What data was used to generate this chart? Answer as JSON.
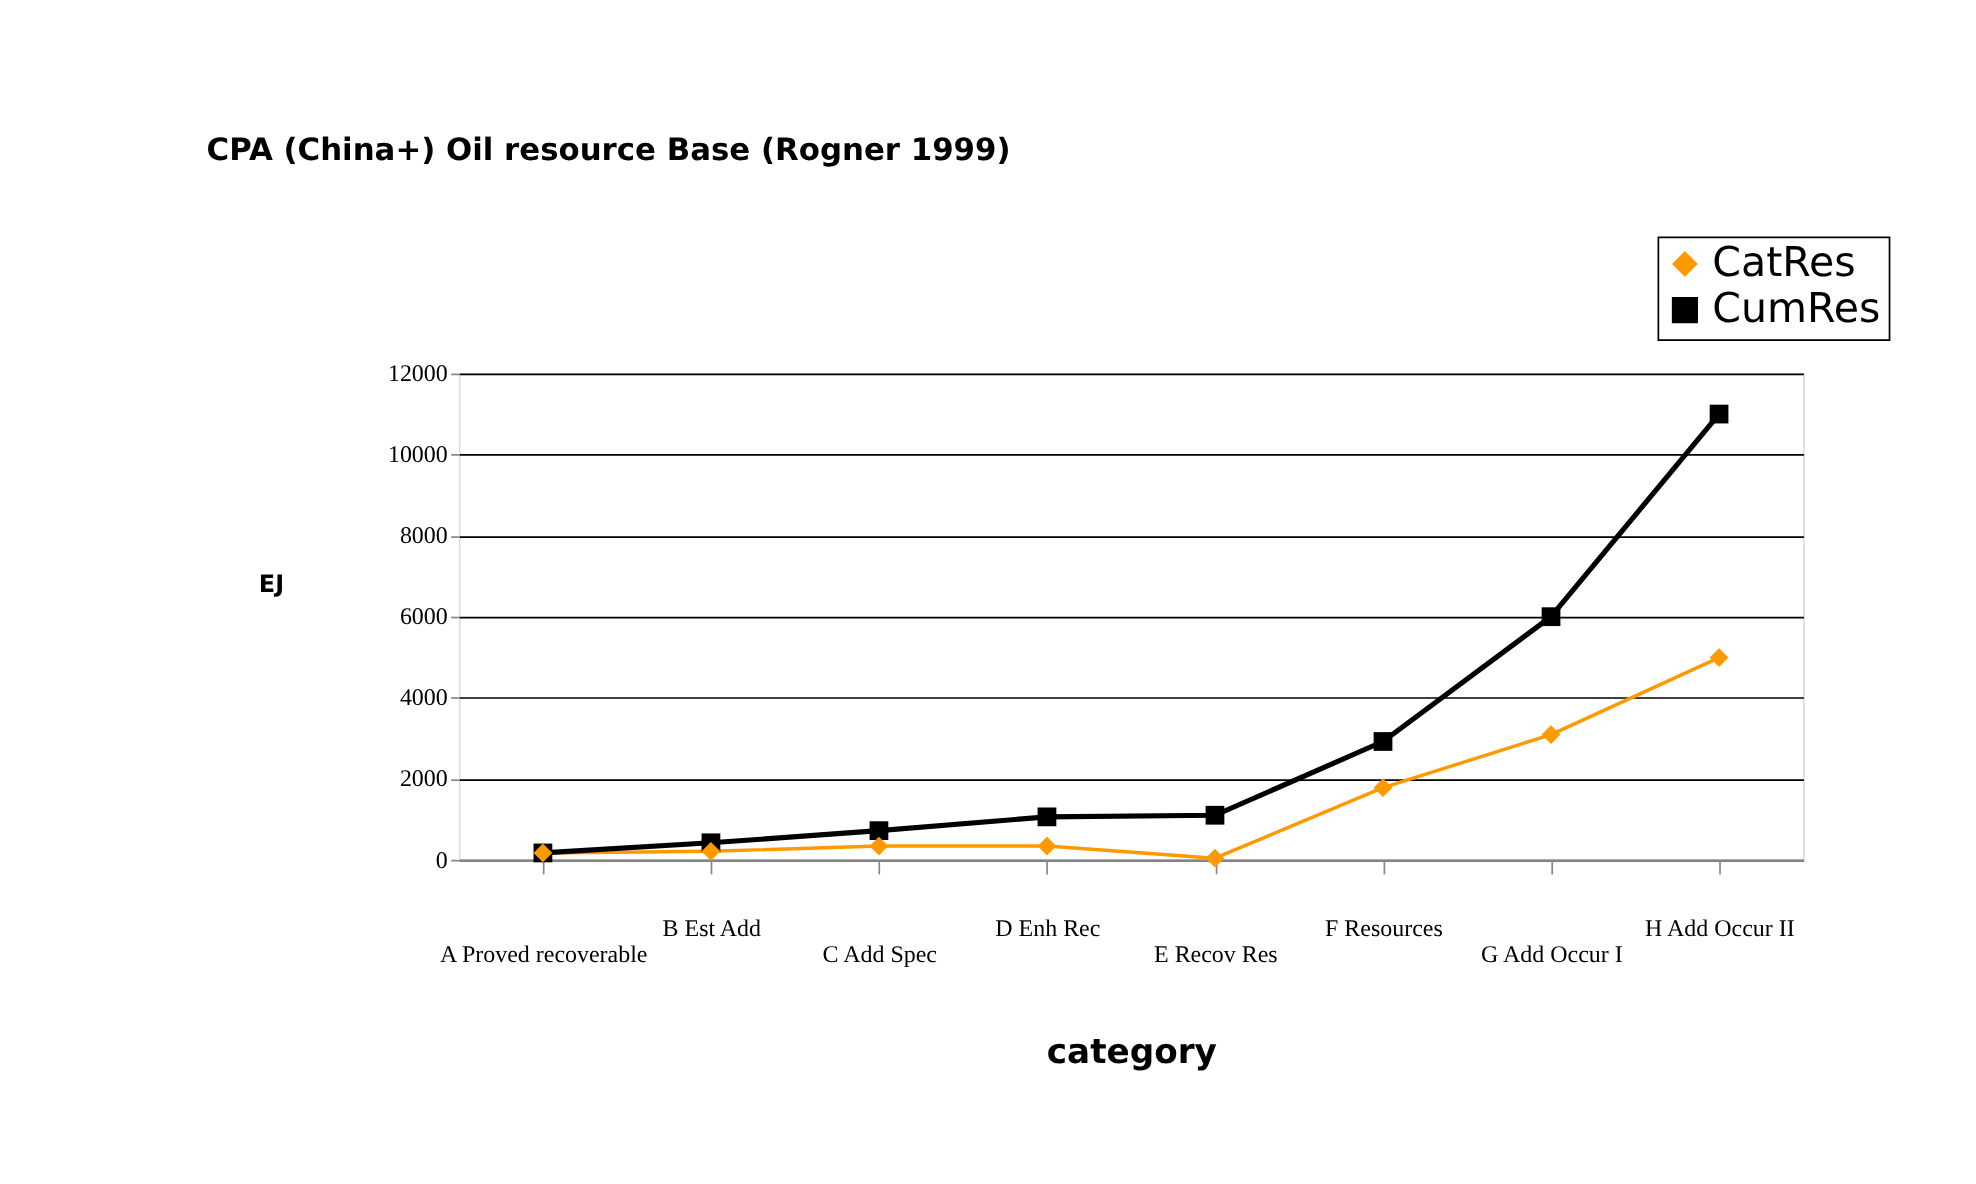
{
  "chart_data": {
    "type": "line",
    "title": "CPA (China+) Oil resource Base (Rogner 1999)",
    "xlabel": "category",
    "ylabel": "EJ",
    "categories": [
      "A Proved recoverable",
      "B Est Add",
      "C Add Spec",
      "D Enh Rec",
      "E Recov Res",
      "F Resources",
      "G Add Occur I",
      "H Add Occur II"
    ],
    "series": [
      {
        "name": "CatRes",
        "color": "#ff9900",
        "marker": "diamond",
        "values": [
          170,
          210,
          340,
          340,
          40,
          1780,
          3090,
          4990
        ]
      },
      {
        "name": "CumRes",
        "color": "#000000",
        "marker": "square",
        "values": [
          170,
          420,
          720,
          1060,
          1100,
          2920,
          6000,
          11000
        ]
      }
    ],
    "ylim": [
      0,
      12000
    ],
    "yticks": [
      0,
      2000,
      4000,
      6000,
      8000,
      10000,
      12000
    ],
    "grid": "y",
    "legend": "top right"
  }
}
